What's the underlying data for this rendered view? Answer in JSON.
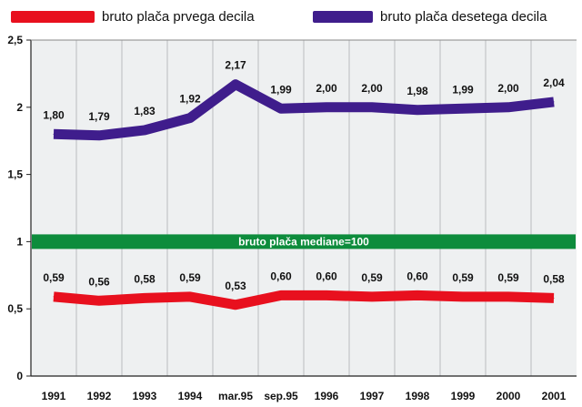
{
  "chart_data": {
    "type": "line",
    "categories": [
      "1991",
      "1992",
      "1993",
      "1994",
      "mar.95",
      "sep.95",
      "1996",
      "1997",
      "1998",
      "1999",
      "2000",
      "2001"
    ],
    "series": [
      {
        "name": "bruto plača prvega decila",
        "color": "#e8101e",
        "values": [
          0.59,
          0.56,
          0.58,
          0.59,
          0.53,
          0.6,
          0.6,
          0.59,
          0.6,
          0.59,
          0.59,
          0.58
        ],
        "labels": [
          "0,59",
          "0,56",
          "0,58",
          "0,59",
          "0,53",
          "0,60",
          "0,60",
          "0,59",
          "0,60",
          "0,59",
          "0,59",
          "0,58"
        ]
      },
      {
        "name": "bruto plača desetega decila",
        "color": "#3f1d8c",
        "values": [
          1.8,
          1.79,
          1.83,
          1.92,
          2.17,
          1.99,
          2.0,
          2.0,
          1.98,
          1.99,
          2.0,
          2.04
        ],
        "labels": [
          "1,80",
          "1,79",
          "1,83",
          "1,92",
          "2,17",
          "1,99",
          "2,00",
          "2,00",
          "1,98",
          "1,99",
          "2,00",
          "2,04"
        ]
      }
    ],
    "yticks": [
      0,
      0.5,
      1,
      1.5,
      2,
      2.5
    ],
    "ytick_labels": [
      "0",
      "0,5",
      "1",
      "1,5",
      "2",
      "2,5"
    ],
    "ylim": [
      0,
      2.5
    ],
    "reference_band": {
      "value": 1,
      "label": "bruto plača mediane=100",
      "color": "#0d8c3c"
    },
    "legend_position": "top",
    "grid": "vertical",
    "plot_background": "#eef0f1"
  }
}
